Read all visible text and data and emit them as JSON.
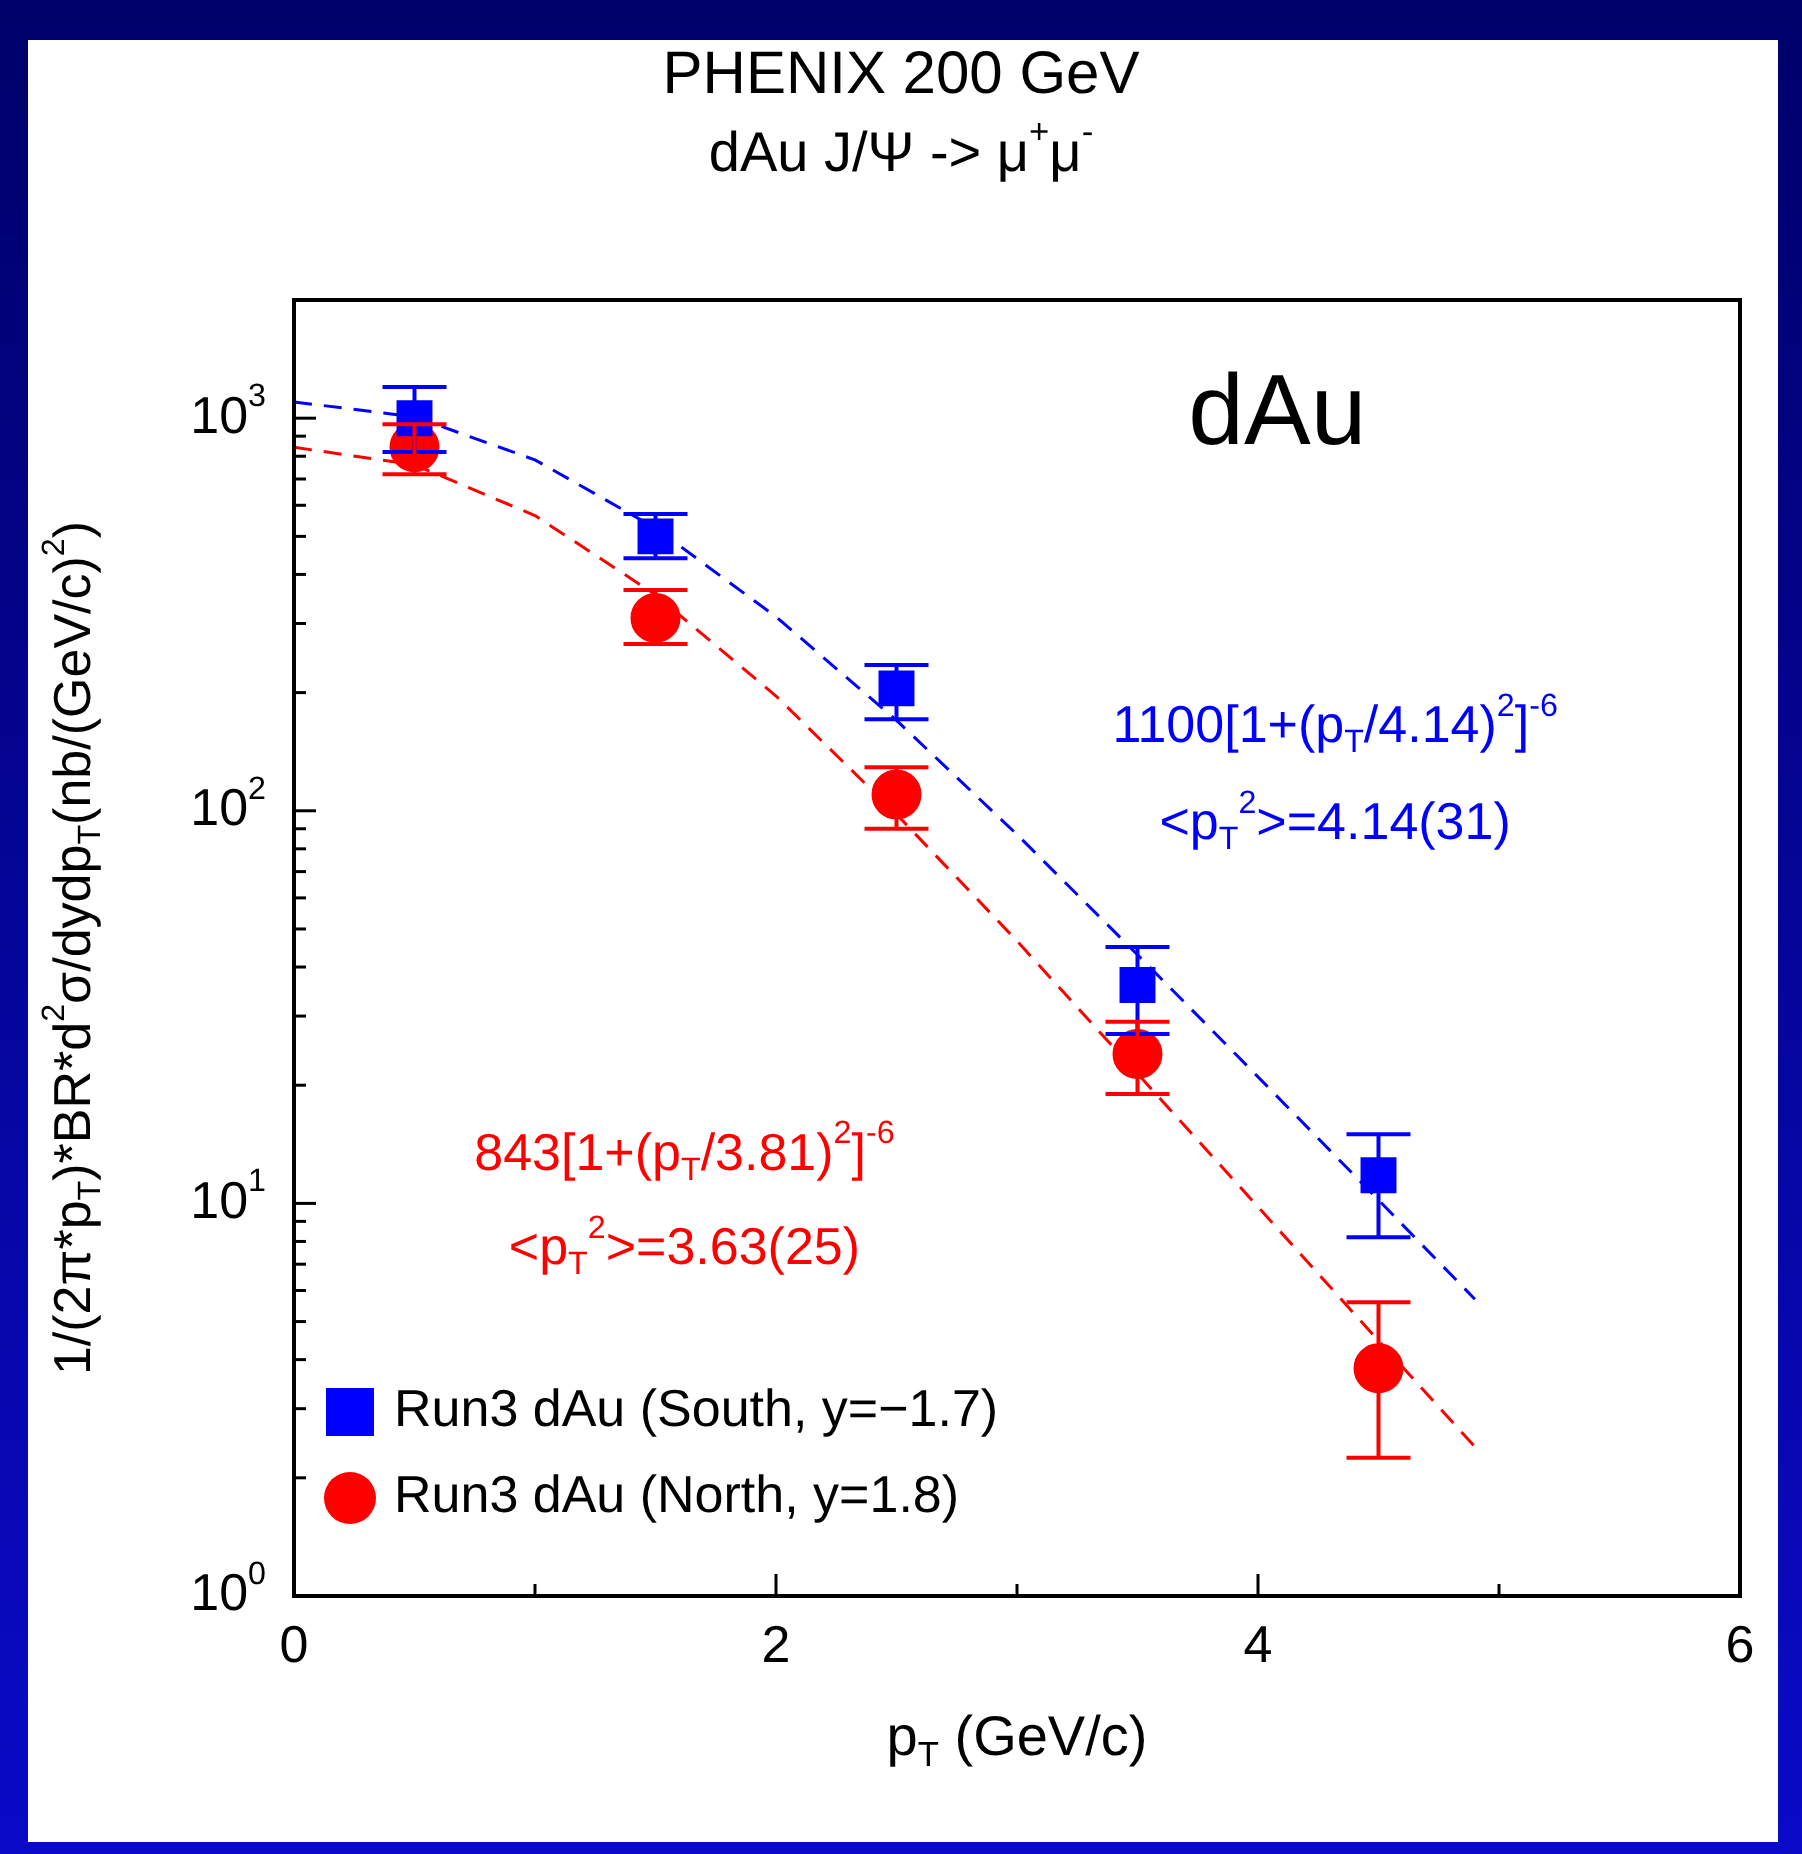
{
  "chart_data": {
    "type": "scatter",
    "title": "PHENIX 200 GeV",
    "subtitle": "dAu J/Ψ -> μ$^{+}$μ$^{-}$",
    "xlabel": "p$_{T}$ (GeV/c)",
    "ylabel": "1/(2π*p$_{T}$)*BR*d$^{2}$σ/dydp$_{T}$(nb/(GeV/c)$^{2}$)",
    "log": "y",
    "xlim": [
      0,
      6
    ],
    "ylim": [
      1,
      2000
    ],
    "xticks": [
      0,
      {
        "value": 1,
        "label": null
      },
      2,
      {
        "value": 3,
        "label": null
      },
      4,
      {
        "value": 5,
        "label": null
      },
      6
    ],
    "yticks": [
      {
        "value": 1,
        "label": "10$^{0}$"
      },
      {
        "value": 2,
        "label": null
      },
      {
        "value": 3,
        "label": null
      },
      {
        "value": 4,
        "label": null
      },
      {
        "value": 5,
        "label": null
      },
      {
        "value": 6,
        "label": null
      },
      {
        "value": 7,
        "label": null
      },
      {
        "value": 8,
        "label": null
      },
      {
        "value": 9,
        "label": null
      },
      {
        "value": 10,
        "label": "10$^{1}$"
      },
      {
        "value": 20,
        "label": null
      },
      {
        "value": 30,
        "label": null
      },
      {
        "value": 40,
        "label": null
      },
      {
        "value": 50,
        "label": null
      },
      {
        "value": 60,
        "label": null
      },
      {
        "value": 70,
        "label": null
      },
      {
        "value": 80,
        "label": null
      },
      {
        "value": 90,
        "label": null
      },
      {
        "value": 100,
        "label": "10$^{2}$"
      },
      {
        "value": 200,
        "label": null
      },
      {
        "value": 300,
        "label": null
      },
      {
        "value": 400,
        "label": null
      },
      {
        "value": 500,
        "label": null
      },
      {
        "value": 600,
        "label": null
      },
      {
        "value": 700,
        "label": null
      },
      {
        "value": 800,
        "label": null
      },
      {
        "value": 900,
        "label": null
      },
      {
        "value": 1000,
        "label": "10$^{3}$"
      }
    ],
    "grid": false,
    "legend": "bottom left",
    "annotations": [
      "dAu",
      "1100[1+(p$_{T}$/4.14)$^{2}$]$^{-6}$",
      "<p$_{T}$$^{2}$>=4.14(31)",
      "843[1+(p$_{T}$/3.81)$^{2}$]$^{-6}$",
      "<p$_{T}$$^{2}$>=3.63(25)"
    ],
    "series": [
      {
        "type": "scatter",
        "name": "Run3 dAu (South, y=−1.7)",
        "color": "#0000ff",
        "marker": "square",
        "x": [
          0.5,
          1.5,
          2.5,
          3.5,
          4.5
        ],
        "values": [
          1000,
          500,
          205,
          36,
          11.8
        ],
        "errors": [
          [
            820,
            1200
          ],
          [
            440,
            570
          ],
          [
            171,
            235
          ],
          [
            27,
            45
          ],
          [
            8.2,
            15
          ]
        ]
      },
      {
        "type": "scatter",
        "name": "Run3 dAu (North, y=1.8)",
        "color": "#ff0000",
        "marker": "circle",
        "x": [
          0.5,
          1.5,
          2.5,
          3.5,
          4.5
        ],
        "values": [
          843,
          310,
          110,
          24,
          3.8
        ],
        "errors": [
          [
            720,
            965
          ],
          [
            266,
            365
          ],
          [
            90,
            129
          ],
          [
            19,
            29
          ],
          [
            2.25,
            5.6
          ]
        ]
      },
      {
        "type": "line",
        "color": "#0000ff",
        "marker": "none",
        "line_style": "dashed",
        "x": [
          0,
          0.5,
          1,
          1.5,
          2,
          2.5,
          3,
          3.5,
          4,
          4.5,
          4.9
        ],
        "values": [
          1100,
          1008,
          783,
          525,
          312,
          170,
          87,
          43,
          21,
          10.2,
          5.7
        ]
      },
      {
        "type": "line",
        "color": "#ff0000",
        "marker": "none",
        "line_style": "dashed",
        "x": [
          0,
          0.5,
          1,
          1.5,
          2,
          2.5,
          3,
          3.5,
          4,
          4.5,
          4.9
        ],
        "values": [
          843,
          761,
          565,
          355,
          196,
          98,
          46.6,
          21.4,
          9.8,
          4.47,
          2.4
        ]
      }
    ]
  }
}
